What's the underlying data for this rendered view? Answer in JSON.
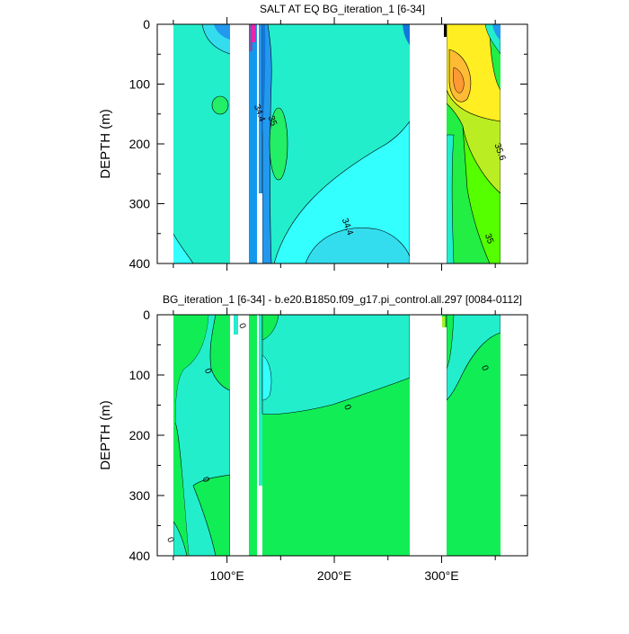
{
  "chart_data": [
    {
      "type": "contour",
      "title": "SALT AT EQ BG_iteration_1 [6-34]",
      "ylabel": "DEPTH (m)",
      "xlim": [
        35,
        380
      ],
      "ylim": [
        0,
        400
      ],
      "y_reversed": true,
      "y_ticks": [
        "0",
        "100",
        "200",
        "300",
        "400"
      ],
      "contour_labels": [
        {
          "text": "34.4",
          "x": 128,
          "y": 150
        },
        {
          "text": "35",
          "x": 140,
          "y": 163
        },
        {
          "text": "35.6",
          "x": 352,
          "y": 215
        },
        {
          "text": "34.4",
          "x": 210,
          "y": 340
        },
        {
          "text": "35",
          "x": 342,
          "y": 360
        }
      ],
      "colors": {
        "background": "#33ffff",
        "mid": "#22eecc",
        "low": "#1199ee",
        "high_green": "#22ee44",
        "high_yellow": "#ffee22",
        "high_orange": "#ffbb33"
      }
    },
    {
      "type": "contour",
      "title": "BG_iteration_1 [6-34] - b.e20.B1850.f09_g17.pi_control.all.297 [0084-0112]",
      "ylabel": "DEPTH (m)",
      "xlabel_ticks": [
        "100°E",
        "200°E",
        "300°E"
      ],
      "x_tick_values": [
        100,
        200,
        300
      ],
      "xlim": [
        35,
        380
      ],
      "ylim": [
        0,
        400
      ],
      "y_reversed": true,
      "y_ticks": [
        "0",
        "100",
        "200",
        "300",
        "400"
      ],
      "contour_labels": [
        {
          "text": "0",
          "x": 112,
          "y": 20
        },
        {
          "text": "0",
          "x": 80,
          "y": 95
        },
        {
          "text": "0",
          "x": 210,
          "y": 155
        },
        {
          "text": "0",
          "x": 78,
          "y": 275
        },
        {
          "text": "0",
          "x": 45,
          "y": 375
        },
        {
          "text": "0",
          "x": 338,
          "y": 90
        }
      ],
      "colors": {
        "positive": "#11ee55",
        "near_zero": "#22eecc",
        "negative": "#33ffff"
      }
    }
  ]
}
